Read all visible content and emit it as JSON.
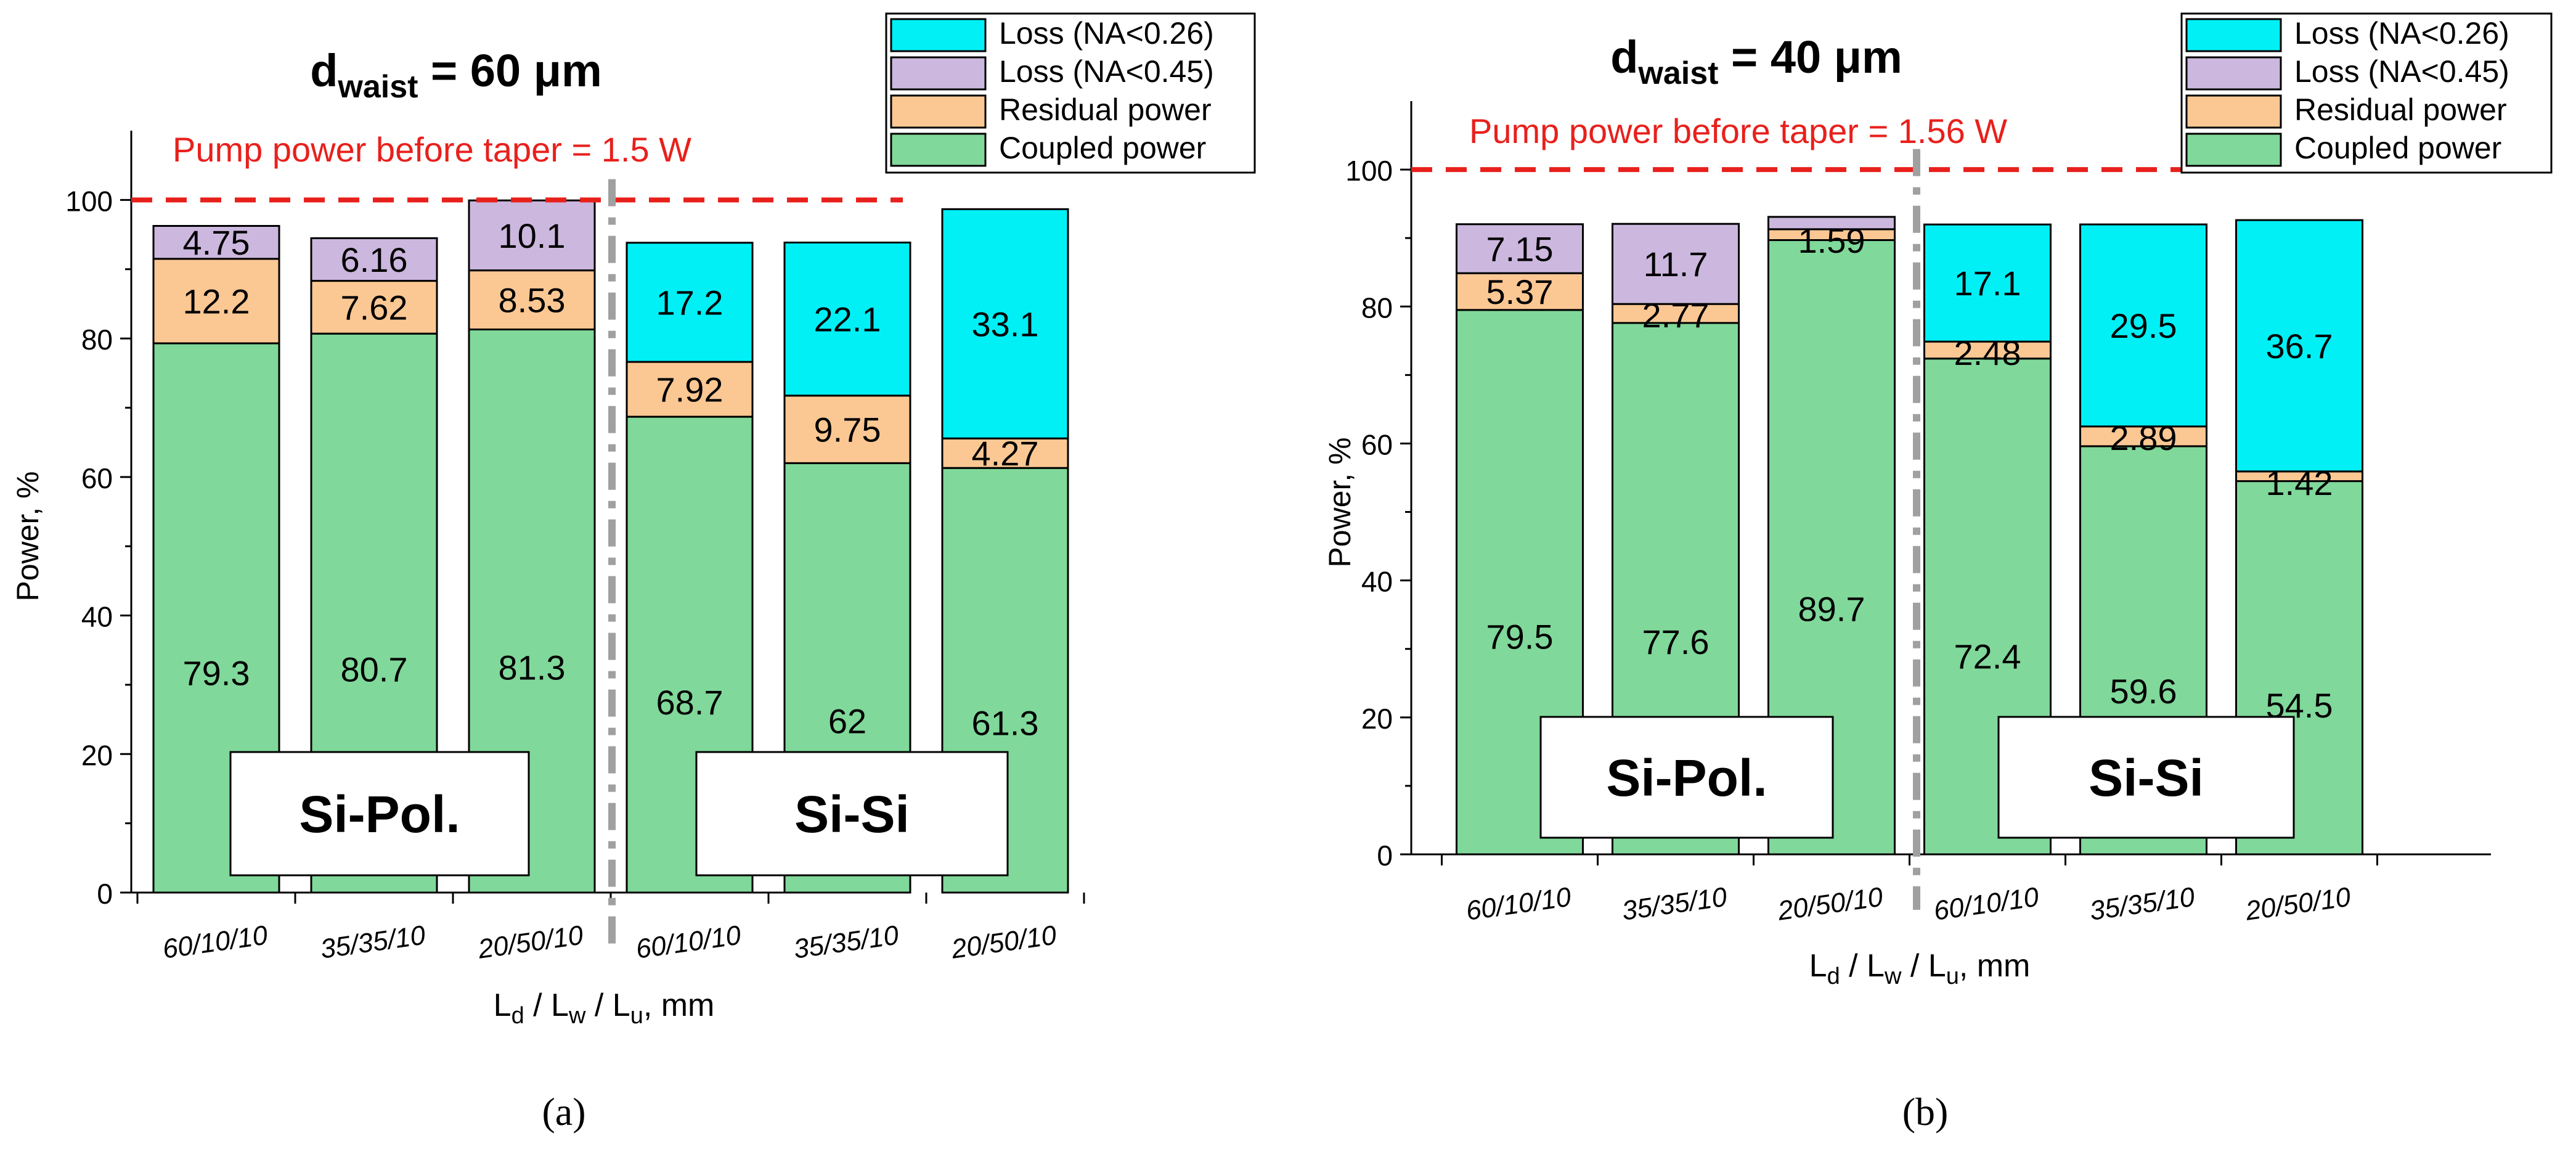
{
  "colors": {
    "coupled": "#80d89a",
    "residual": "#fbc793",
    "loss045": "#ccb7de",
    "loss026": "#00f0f6",
    "pump_line": "#e8201c",
    "pump_text": "#e8201c",
    "divider": "#a0a0a0"
  },
  "chart_data": [
    {
      "type": "bar",
      "stacked": true,
      "panel_label": "(a)",
      "title_main": "d",
      "title_sub": "waist",
      "title_rest": " = 60 μm",
      "xlabel_parts": [
        "L",
        "d",
        " / L",
        "w",
        " / L",
        "u",
        ", mm"
      ],
      "ylabel": "Power, %",
      "ylim": [
        0,
        110
      ],
      "yticks": [
        "0",
        "20",
        "40",
        "60",
        "80",
        "100"
      ],
      "categories": [
        "60/10/10",
        "35/35/10",
        "20/50/10",
        "60/10/10",
        "35/35/10",
        "20/50/10"
      ],
      "pump_label": "Pump power before taper = 1.5 W",
      "pump_value": 100,
      "groups": [
        "Si-Pol.",
        "Si-Si"
      ],
      "legend": [
        "Loss (NA<0.26)",
        "Loss (NA<0.45)",
        "Residual power",
        "Coupled power"
      ],
      "series": [
        {
          "name": "Coupled power",
          "values": [
            79.3,
            80.7,
            81.3,
            68.7,
            62,
            61.3
          ],
          "labels": [
            "79.3",
            "80.7",
            "81.3",
            "68.7",
            "62",
            "61.3"
          ]
        },
        {
          "name": "Residual power",
          "values": [
            12.2,
            7.62,
            8.53,
            7.92,
            9.75,
            4.27
          ],
          "labels": [
            "12.2",
            "7.62",
            "8.53",
            "7.92",
            "9.75",
            "4.27"
          ]
        },
        {
          "name": "Loss (NA<0.45)",
          "values": [
            4.75,
            6.16,
            10.1,
            0,
            0,
            0
          ],
          "labels": [
            "4.75",
            "6.16",
            "10.1",
            "",
            "",
            ""
          ]
        },
        {
          "name": "Loss (NA<0.26)",
          "values": [
            0,
            0,
            0,
            17.2,
            22.1,
            33.1
          ],
          "labels": [
            "",
            "",
            "",
            "17.2",
            "22.1",
            "33.1"
          ]
        }
      ]
    },
    {
      "type": "bar",
      "stacked": true,
      "panel_label": "(b)",
      "title_main": "d",
      "title_sub": "waist",
      "title_rest": " = 40 μm",
      "xlabel_parts": [
        "L",
        "d",
        " / L",
        "w",
        " / L",
        "u",
        ", mm"
      ],
      "ylabel": "Power, %",
      "ylim": [
        0,
        110
      ],
      "yticks": [
        "0",
        "20",
        "40",
        "60",
        "80",
        "100"
      ],
      "categories": [
        "60/10/10",
        "35/35/10",
        "20/50/10",
        "60/10/10",
        "35/35/10",
        "20/50/10"
      ],
      "pump_label": "Pump power before taper = 1.56 W",
      "pump_value": 100,
      "groups": [
        "Si-Pol.",
        "Si-Si"
      ],
      "legend": [
        "Loss (NA<0.26)",
        "Loss (NA<0.45)",
        "Residual power",
        "Coupled power"
      ],
      "series": [
        {
          "name": "Coupled power",
          "values": [
            79.5,
            77.6,
            89.7,
            72.4,
            59.6,
            54.5
          ],
          "labels": [
            "79.5",
            "77.6",
            "89.7",
            "72.4",
            "59.6",
            "54.5"
          ]
        },
        {
          "name": "Residual power",
          "values": [
            5.37,
            2.77,
            1.59,
            2.48,
            2.89,
            1.42
          ],
          "labels": [
            "5.37",
            "2.77",
            "1.59",
            "2.48",
            "2.89",
            "1.42"
          ]
        },
        {
          "name": "Loss (NA<0.45)",
          "values": [
            7.15,
            11.7,
            1.8,
            0,
            0,
            0
          ],
          "labels": [
            "7.15",
            "11.7",
            "",
            "",
            "",
            ""
          ]
        },
        {
          "name": "Loss (NA<0.26)",
          "values": [
            0,
            0,
            0,
            17.1,
            29.5,
            36.7
          ],
          "labels": [
            "",
            "",
            "",
            "17.1",
            "29.5",
            "36.7"
          ]
        }
      ]
    }
  ]
}
